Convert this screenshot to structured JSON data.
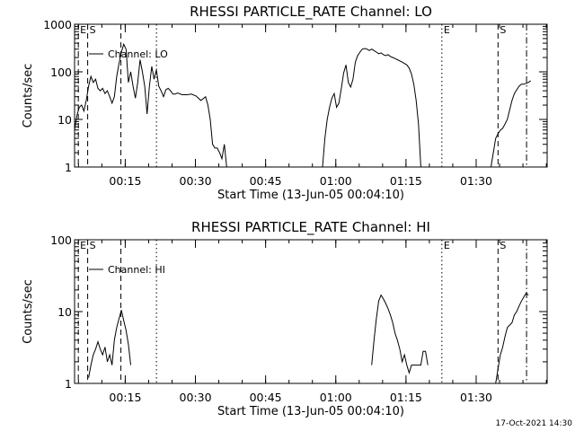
{
  "footer_text": "17-Oct-2021 14:30",
  "chart_data": [
    {
      "type": "line",
      "title": "RHESSI PARTICLE_RATE Channel: LO",
      "xlabel": "Start Time (13-Jun-05 00:04:10)",
      "ylabel": "Counts/sec",
      "y_scale": "log",
      "ylim": [
        1,
        1000
      ],
      "y_ticks": [
        1,
        10,
        100,
        1000
      ],
      "y_tick_labels": [
        "1",
        "10",
        "100",
        "1000"
      ],
      "x_unit": "minutes after 00:04:10",
      "xlim": [
        0,
        101
      ],
      "x_ticks": [
        10.83,
        25.83,
        40.83,
        55.83,
        70.83,
        85.83
      ],
      "x_tick_labels": [
        "00:15",
        "00:30",
        "00:45",
        "01:00",
        "01:15",
        "01:30"
      ],
      "series": [
        {
          "name": "Channel: LO",
          "segments": [
            [
              [
                0,
                6
              ],
              [
                0.5,
                12
              ],
              [
                1,
                18
              ],
              [
                1.5,
                20
              ],
              [
                2,
                15
              ],
              [
                2.5,
                25
              ],
              [
                3,
                50
              ],
              [
                3.5,
                80
              ],
              [
                4,
                60
              ],
              [
                4.5,
                70
              ],
              [
                5,
                45
              ],
              [
                5.5,
                40
              ],
              [
                6,
                45
              ],
              [
                6.5,
                35
              ],
              [
                7,
                40
              ],
              [
                7.5,
                30
              ],
              [
                8,
                22
              ],
              [
                8.5,
                30
              ],
              [
                9,
                80
              ],
              [
                9.5,
                150
              ],
              [
                10,
                260
              ],
              [
                10.5,
                380
              ],
              [
                11,
                300
              ],
              [
                11.5,
                60
              ],
              [
                12,
                100
              ],
              [
                12.5,
                50
              ],
              [
                13,
                28
              ],
              [
                13.5,
                60
              ],
              [
                14,
                180
              ],
              [
                14.5,
                100
              ],
              [
                15,
                50
              ],
              [
                15.5,
                13
              ],
              [
                16,
                50
              ],
              [
                16.5,
                130
              ],
              [
                17,
                70
              ],
              [
                17.5,
                110
              ],
              [
                18,
                50
              ],
              [
                18.5,
                40
              ],
              [
                19,
                30
              ],
              [
                19.5,
                42
              ],
              [
                20,
                45
              ],
              [
                20.5,
                40
              ],
              [
                21,
                34
              ],
              [
                21.5,
                34
              ],
              [
                22,
                36
              ],
              [
                23,
                33
              ],
              [
                24,
                33
              ],
              [
                25,
                34
              ],
              [
                26,
                31
              ],
              [
                27,
                25
              ],
              [
                28,
                30
              ],
              [
                28.5,
                20
              ],
              [
                29,
                10
              ],
              [
                29.5,
                3
              ],
              [
                30,
                2.5
              ],
              [
                30.5,
                2.5
              ],
              [
                31,
                2
              ],
              [
                31.5,
                1.5
              ],
              [
                32,
                3
              ],
              [
                32.5,
                1
              ]
            ],
            [
              [
                53,
                1
              ],
              [
                53.5,
                4
              ],
              [
                54,
                10
              ],
              [
                54.5,
                18
              ],
              [
                55,
                28
              ],
              [
                55.5,
                35
              ],
              [
                56,
                18
              ],
              [
                56.5,
                22
              ],
              [
                57,
                45
              ],
              [
                57.5,
                95
              ],
              [
                58,
                140
              ],
              [
                58.5,
                60
              ],
              [
                59,
                48
              ],
              [
                59.5,
                70
              ],
              [
                60,
                160
              ],
              [
                60.5,
                220
              ],
              [
                61,
                260
              ],
              [
                61.5,
                300
              ],
              [
                62,
                310
              ],
              [
                62.5,
                300
              ],
              [
                63,
                280
              ],
              [
                63.5,
                300
              ],
              [
                64,
                280
              ],
              [
                64.5,
                260
              ],
              [
                65,
                240
              ],
              [
                65.5,
                250
              ],
              [
                66,
                230
              ],
              [
                66.5,
                220
              ],
              [
                67,
                230
              ],
              [
                67.5,
                210
              ],
              [
                68,
                200
              ],
              [
                68.5,
                190
              ],
              [
                69,
                180
              ],
              [
                69.5,
                170
              ],
              [
                70,
                160
              ],
              [
                70.5,
                150
              ],
              [
                71,
                140
              ],
              [
                71.5,
                120
              ],
              [
                72,
                90
              ],
              [
                72.5,
                55
              ],
              [
                73,
                25
              ],
              [
                73.5,
                8
              ],
              [
                74,
                1
              ]
            ],
            [
              [
                89,
                1
              ],
              [
                89.5,
                2
              ],
              [
                90,
                4
              ],
              [
                90.5,
                5
              ],
              [
                91,
                6
              ],
              [
                91.5,
                6.5
              ],
              [
                92,
                8
              ],
              [
                92.5,
                10
              ],
              [
                93,
                16
              ],
              [
                93.5,
                25
              ],
              [
                94,
                35
              ],
              [
                94.5,
                42
              ],
              [
                95,
                50
              ],
              [
                95.5,
                55
              ],
              [
                96,
                55
              ],
              [
                97,
                60
              ],
              [
                97.5,
                65
              ]
            ]
          ]
        }
      ],
      "markers": [
        {
          "label": "E",
          "x": 0.8,
          "style": "dashed"
        },
        {
          "label": "S",
          "x": 2.8,
          "style": "dashed"
        },
        {
          "label": "",
          "x": 9.9,
          "style": "dashed"
        },
        {
          "label": "",
          "x": 17.5,
          "style": "dotted"
        },
        {
          "label": "E",
          "x": 78.5,
          "style": "dotted"
        },
        {
          "label": "S",
          "x": 90.5,
          "style": "dashed"
        },
        {
          "label": "",
          "x": 96.6,
          "style": "dashdot"
        }
      ],
      "legend": {
        "label": "Channel: LO",
        "position": "top-left"
      }
    },
    {
      "type": "line",
      "title": "RHESSI PARTICLE_RATE Channel: HI",
      "xlabel": "Start Time (13-Jun-05 00:04:10)",
      "ylabel": "Counts/sec",
      "y_scale": "log",
      "ylim": [
        1,
        100
      ],
      "y_ticks": [
        1,
        10,
        100
      ],
      "y_tick_labels": [
        "1",
        "10",
        "100"
      ],
      "x_unit": "minutes after 00:04:10",
      "xlim": [
        0,
        101
      ],
      "x_ticks": [
        10.83,
        25.83,
        40.83,
        55.83,
        70.83,
        85.83
      ],
      "x_tick_labels": [
        "00:15",
        "00:30",
        "00:45",
        "01:00",
        "01:15",
        "01:30"
      ],
      "series": [
        {
          "name": "Channel: HI",
          "segments": [
            [
              [
                3,
                1.2
              ],
              [
                3.5,
                1.8
              ],
              [
                4,
                2.5
              ],
              [
                4.5,
                3.0
              ],
              [
                5,
                3.8
              ],
              [
                5.5,
                3.0
              ],
              [
                6,
                2.5
              ],
              [
                6.5,
                3.2
              ],
              [
                7,
                2.0
              ],
              [
                7.5,
                2.5
              ],
              [
                8,
                1.8
              ],
              [
                8.5,
                4.0
              ],
              [
                9,
                6.0
              ],
              [
                9.5,
                8.0
              ],
              [
                10,
                10.5
              ],
              [
                10.5,
                7.5
              ],
              [
                11,
                5.5
              ],
              [
                11.5,
                3.5
              ],
              [
                12,
                1.8
              ]
            ],
            [
              [
                63.5,
                1.8
              ],
              [
                64,
                4
              ],
              [
                64.5,
                8
              ],
              [
                65,
                14
              ],
              [
                65.5,
                17
              ],
              [
                66,
                15
              ],
              [
                66.5,
                13
              ],
              [
                67,
                11
              ],
              [
                67.5,
                9
              ],
              [
                68,
                7
              ],
              [
                68.5,
                5
              ],
              [
                69,
                4
              ],
              [
                69.5,
                3
              ],
              [
                70,
                2
              ],
              [
                70.5,
                2.5
              ],
              [
                71,
                1.8
              ],
              [
                71.5,
                1.4
              ],
              [
                72,
                1.8
              ],
              [
                73,
                1.8
              ],
              [
                74,
                1.8
              ],
              [
                74.5,
                2.8
              ],
              [
                75,
                2.8
              ],
              [
                75.5,
                1.8
              ]
            ],
            [
              [
                90,
                1
              ],
              [
                90.5,
                1.6
              ],
              [
                91,
                2.5
              ],
              [
                91.5,
                3.2
              ],
              [
                92,
                4.5
              ],
              [
                92.5,
                6
              ],
              [
                93,
                6.5
              ],
              [
                93.5,
                7
              ],
              [
                94,
                9
              ],
              [
                94.5,
                10
              ],
              [
                95,
                12
              ],
              [
                95.5,
                14
              ],
              [
                96,
                16
              ],
              [
                96.5,
                18
              ],
              [
                97,
                17
              ]
            ]
          ]
        }
      ],
      "markers": [
        {
          "label": "E",
          "x": 0.8,
          "style": "dashed"
        },
        {
          "label": "S",
          "x": 2.8,
          "style": "dashed"
        },
        {
          "label": "",
          "x": 9.9,
          "style": "dashed"
        },
        {
          "label": "",
          "x": 17.5,
          "style": "dotted"
        },
        {
          "label": "E",
          "x": 78.5,
          "style": "dotted"
        },
        {
          "label": "S",
          "x": 90.5,
          "style": "dashed"
        },
        {
          "label": "",
          "x": 96.6,
          "style": "dashdot"
        }
      ],
      "legend": {
        "label": "Channel: HI",
        "position": "top-left"
      }
    }
  ]
}
